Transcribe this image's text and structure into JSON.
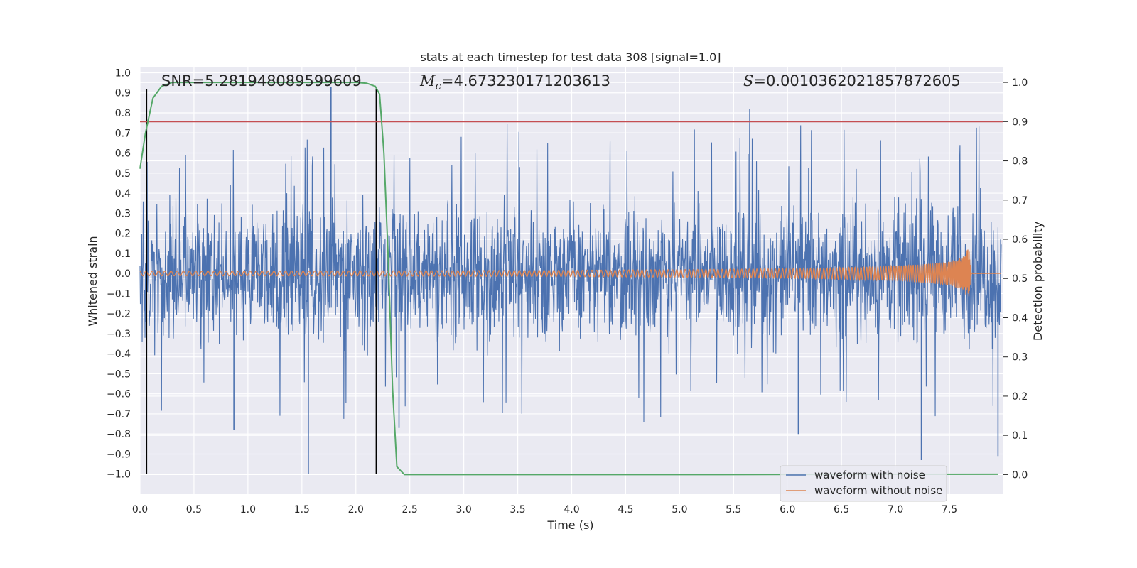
{
  "chart_data": {
    "type": "line",
    "title": "stats at each timestep for test data 308 [signal=1.0]",
    "xlabel": "Time (s)",
    "ylabel": "Whitened strain",
    "ylabel_right": "Detection probability",
    "xlim": [
      0.0,
      8.0
    ],
    "ylim": [
      -1.1,
      1.03
    ],
    "ylim_right": [
      -0.05,
      1.04
    ],
    "xticks": [
      0.0,
      0.5,
      1.0,
      1.5,
      2.0,
      2.5,
      3.0,
      3.5,
      4.0,
      4.5,
      5.0,
      5.5,
      6.0,
      6.5,
      7.0,
      7.5
    ],
    "yticks": [
      1.0,
      0.9,
      0.8,
      0.7,
      0.6,
      0.5,
      0.4,
      0.3,
      0.2,
      0.1,
      0.0,
      -0.1,
      -0.2,
      -0.3,
      -0.4,
      -0.5,
      -0.6,
      -0.7,
      -0.8,
      -0.9,
      -1.0
    ],
    "yticks_right": [
      1.0,
      0.9,
      0.8,
      0.7,
      0.6,
      0.5,
      0.4,
      0.3,
      0.2,
      0.1,
      0.0
    ],
    "tick_labels_x": [
      "0.0",
      "0.5",
      "1.0",
      "1.5",
      "2.0",
      "2.5",
      "3.0",
      "3.5",
      "4.0",
      "4.5",
      "5.0",
      "5.5",
      "6.0",
      "6.5",
      "7.0",
      "7.5"
    ],
    "tick_labels_y": [
      "1.0",
      "0.9",
      "0.8",
      "0.7",
      "0.6",
      "0.5",
      "0.4",
      "0.3",
      "0.2",
      "0.1",
      "0.0",
      "−0.1",
      "−0.2",
      "−0.3",
      "−0.4",
      "−0.5",
      "−0.6",
      "−0.7",
      "−0.8",
      "−0.9",
      "−1.0"
    ],
    "tick_labels_y_right": [
      "1.0",
      "0.9",
      "0.8",
      "0.7",
      "0.6",
      "0.5",
      "0.4",
      "0.3",
      "0.2",
      "0.1",
      "0.0"
    ],
    "grid": true,
    "legend_position": "bottom-right",
    "annotations": {
      "snr": "SNR=5.281948089599609",
      "mc_value": "=4.673230171203613",
      "s_value": "=0.0010362021857872605",
      "mc_symbol": "M",
      "mc_subscript": "c",
      "s_symbol": "S"
    },
    "vlines": [
      0.06,
      2.19
    ],
    "threshold_probability": 0.9,
    "series": [
      {
        "name": "waveform with noise",
        "color": "#4c72b0",
        "axis": "left",
        "noise_envelope": {
          "typical_max": 0.45,
          "peak_max": 0.93,
          "typical_min": -0.45,
          "peak_min": -1.0
        },
        "spikes": [
          {
            "x": 1.56,
            "y": -1.0
          },
          {
            "x": 1.77,
            "y": 0.93
          },
          {
            "x": 2.4,
            "y": -0.77
          },
          {
            "x": 5.65,
            "y": 0.82
          },
          {
            "x": 7.24,
            "y": -0.93
          },
          {
            "x": 7.95,
            "y": -0.91
          },
          {
            "x": 0.87,
            "y": -0.78
          },
          {
            "x": 6.1,
            "y": -0.8
          }
        ]
      },
      {
        "name": "waveform without noise",
        "color": "#dd8452",
        "axis": "left",
        "chirp_amplitude": [
          [
            0.0,
            0.012
          ],
          [
            1.0,
            0.012
          ],
          [
            2.0,
            0.013
          ],
          [
            3.0,
            0.014
          ],
          [
            4.0,
            0.016
          ],
          [
            5.0,
            0.019
          ],
          [
            6.0,
            0.024
          ],
          [
            6.5,
            0.029
          ],
          [
            7.0,
            0.037
          ],
          [
            7.3,
            0.048
          ],
          [
            7.5,
            0.06
          ],
          [
            7.62,
            0.08
          ],
          [
            7.68,
            0.13
          ],
          [
            7.7,
            0.0
          ],
          [
            8.0,
            0.0
          ]
        ]
      },
      {
        "name": "detection probability",
        "color": "#55a868",
        "axis": "right",
        "points": [
          [
            0.0,
            0.78
          ],
          [
            0.05,
            0.87
          ],
          [
            0.12,
            0.96
          ],
          [
            0.2,
            0.99
          ],
          [
            0.3,
            1.0
          ],
          [
            1.0,
            1.0
          ],
          [
            2.0,
            1.0
          ],
          [
            2.1,
            0.998
          ],
          [
            2.18,
            0.99
          ],
          [
            2.22,
            0.97
          ],
          [
            2.26,
            0.82
          ],
          [
            2.3,
            0.55
          ],
          [
            2.34,
            0.22
          ],
          [
            2.38,
            0.02
          ],
          [
            2.45,
            0.0
          ],
          [
            3.0,
            0.0
          ],
          [
            5.0,
            0.0
          ],
          [
            7.95,
            0.001
          ]
        ]
      }
    ],
    "legend": [
      "waveform with noise",
      "waveform without noise"
    ]
  }
}
